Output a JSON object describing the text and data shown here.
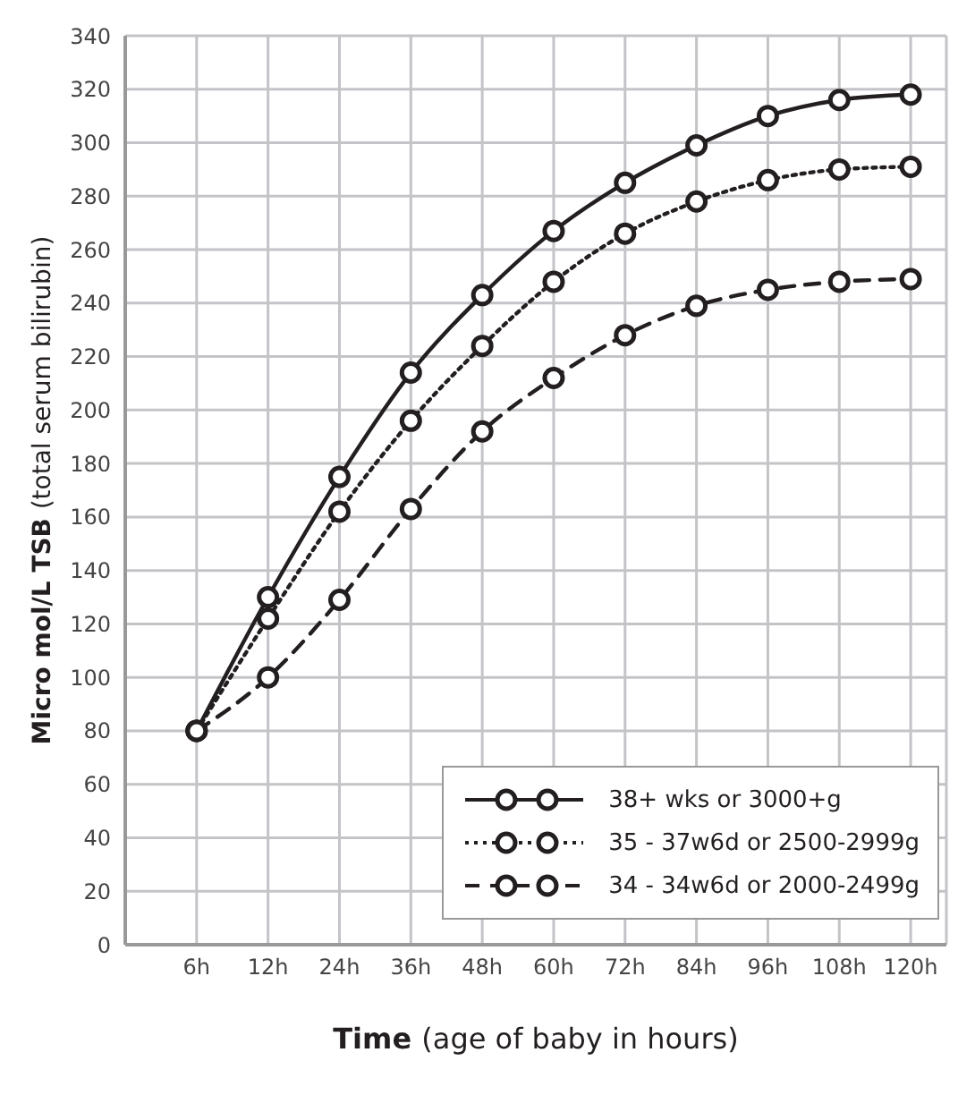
{
  "chart_data": {
    "type": "line",
    "xlabel": "Time (age of baby in hours)",
    "ylabel": "Micro mol/L TSB (total serum bilirubin)",
    "categories": [
      "6h",
      "12h",
      "24h",
      "36h",
      "48h",
      "60h",
      "72h",
      "84h",
      "96h",
      "108h",
      "120h"
    ],
    "series": [
      {
        "name": "38+ wks or 3000+g",
        "color": "#231f20",
        "line_style": "solid",
        "values": [
          80,
          130,
          175,
          214,
          243,
          267,
          285,
          299,
          310,
          316,
          318
        ]
      },
      {
        "name": "35 - 37w6d or 2500-2999g",
        "color": "#231f20",
        "line_style": "dotted",
        "values": [
          80,
          122,
          162,
          196,
          224,
          248,
          266,
          278,
          286,
          290,
          291
        ]
      },
      {
        "name": "34 - 34w6d or 2000-2499g",
        "color": "#231f20",
        "line_style": "dashed",
        "values": [
          80,
          100,
          129,
          163,
          192,
          212,
          228,
          239,
          245,
          248,
          249
        ]
      }
    ],
    "ylim": [
      0,
      340
    ],
    "yticks": [
      0,
      20,
      40,
      60,
      80,
      100,
      120,
      140,
      160,
      180,
      200,
      220,
      240,
      260,
      280,
      300,
      320,
      340
    ],
    "grid": true,
    "legend": "bottom right",
    "marker": "circle"
  }
}
